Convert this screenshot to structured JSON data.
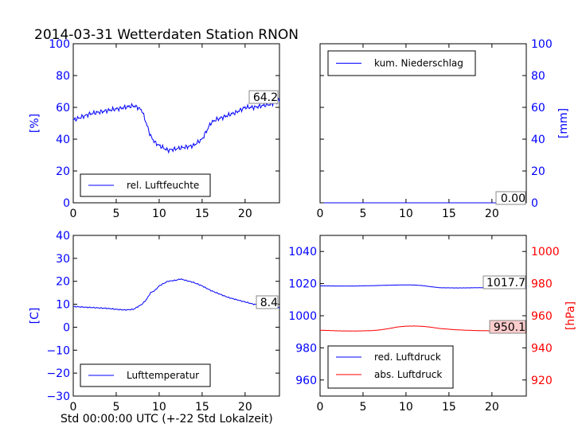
{
  "figure": {
    "title": "2014-03-31 Wetterdaten Station RNON",
    "xlabel": "Std 00:00:00 UTC (+-22 Std Lokalzeit)"
  },
  "colors": {
    "blue": "#0000ff",
    "red": "#ff0000",
    "annotation_bg": "#ffcccc"
  },
  "chart_data": [
    {
      "id": "humidity",
      "type": "line",
      "xlim": [
        0,
        24
      ],
      "ylim": [
        0,
        100
      ],
      "xticks": [
        "0",
        "5",
        "10",
        "15",
        "20"
      ],
      "yticks": [
        "0",
        "20",
        "40",
        "60",
        "80",
        "100"
      ],
      "ylabel": "[%]",
      "legend": {
        "position": "lower-left",
        "entries": [
          "rel. Luftfeuchte"
        ]
      },
      "annotation": "64.2",
      "series": [
        {
          "name": "rel. Luftfeuchte",
          "x": [
            0,
            1,
            2,
            3,
            4,
            5,
            6,
            7,
            7.5,
            8,
            8.5,
            9,
            9.5,
            10,
            11,
            12,
            13,
            14,
            15,
            15.5,
            16,
            16.5,
            17,
            18,
            19,
            20,
            21,
            22,
            23,
            24
          ],
          "y": [
            52,
            54,
            56,
            57,
            58,
            59,
            60,
            61,
            60,
            58,
            50,
            42,
            38,
            36,
            33,
            34,
            35,
            36,
            40,
            45,
            50,
            52,
            53,
            55,
            57,
            60,
            60,
            61,
            62,
            64.2
          ]
        }
      ]
    },
    {
      "id": "precipitation",
      "type": "line",
      "xlim": [
        0,
        24
      ],
      "ylim": [
        0,
        100
      ],
      "xticks": [
        "0",
        "5",
        "10",
        "15",
        "20"
      ],
      "yticks": [
        "0",
        "20",
        "40",
        "60",
        "80",
        "100"
      ],
      "ylabel": "[mm]",
      "legend": {
        "position": "upper-left",
        "entries": [
          "kum. Niederschlag"
        ]
      },
      "annotation": "0.00",
      "series": [
        {
          "name": "kum. Niederschlag",
          "x": [
            0,
            24
          ],
          "y": [
            0,
            0
          ]
        }
      ]
    },
    {
      "id": "temperature",
      "type": "line",
      "xlim": [
        0,
        24
      ],
      "ylim": [
        -30,
        40
      ],
      "xticks": [
        "0",
        "5",
        "10",
        "15",
        "20"
      ],
      "yticks": [
        "−30",
        "−20",
        "−10",
        "0",
        "10",
        "20",
        "30",
        "40"
      ],
      "ylabel": "[C]",
      "legend": {
        "position": "lower-left",
        "entries": [
          "Lufttemperatur"
        ]
      },
      "annotation": "8.4",
      "series": [
        {
          "name": "Lufttemperatur",
          "x": [
            0,
            1,
            2,
            3,
            4,
            5,
            6,
            7,
            8,
            8.5,
            9,
            9.5,
            10,
            11,
            12,
            12.5,
            13,
            14,
            15,
            16,
            17,
            18,
            19,
            20,
            21,
            22,
            23,
            24
          ],
          "y": [
            9,
            8.8,
            8.6,
            8.4,
            8.2,
            7.8,
            7.5,
            7.8,
            10,
            12,
            15,
            16,
            18,
            20,
            20.5,
            21,
            20.5,
            19.5,
            18,
            16,
            14.5,
            13,
            12,
            11,
            10,
            9.5,
            8.8,
            8.4
          ]
        }
      ]
    },
    {
      "id": "pressure",
      "type": "line",
      "xlim": [
        0,
        24
      ],
      "ylim": [
        950,
        1050
      ],
      "y2lim": [
        910,
        1010
      ],
      "xticks": [
        "0",
        "5",
        "10",
        "15",
        "20"
      ],
      "yticks": [
        "960",
        "980",
        "1000",
        "1020",
        "1040"
      ],
      "y2ticks": [
        "920",
        "940",
        "960",
        "980",
        "1000"
      ],
      "y2label": "[hPa]",
      "legend": {
        "position": "lower-left",
        "entries": [
          "red. Luftdruck",
          "abs. Luftdruck"
        ]
      },
      "annotations": [
        "1017.7",
        "950.1"
      ],
      "series": [
        {
          "name": "red. Luftdruck",
          "axis": "left",
          "x": [
            0,
            2,
            4,
            6,
            8,
            10,
            11,
            12,
            13,
            14,
            16,
            18,
            20,
            22,
            24
          ],
          "y": [
            1018.6,
            1018.5,
            1018.5,
            1018.7,
            1019.0,
            1019.2,
            1019.1,
            1018.7,
            1018.0,
            1017.4,
            1017.3,
            1017.4,
            1017.5,
            1017.6,
            1017.7
          ]
        },
        {
          "name": "abs. Luftdruck",
          "axis": "right",
          "x": [
            0,
            2,
            4,
            6,
            7,
            8,
            9,
            10,
            11,
            12,
            13,
            14,
            16,
            18,
            20,
            22,
            24
          ],
          "y": [
            951.0,
            950.6,
            950.5,
            950.7,
            951.2,
            952.0,
            953.0,
            953.5,
            953.6,
            953.4,
            952.8,
            952.0,
            951.2,
            950.8,
            950.6,
            950.4,
            950.1
          ]
        }
      ]
    }
  ]
}
